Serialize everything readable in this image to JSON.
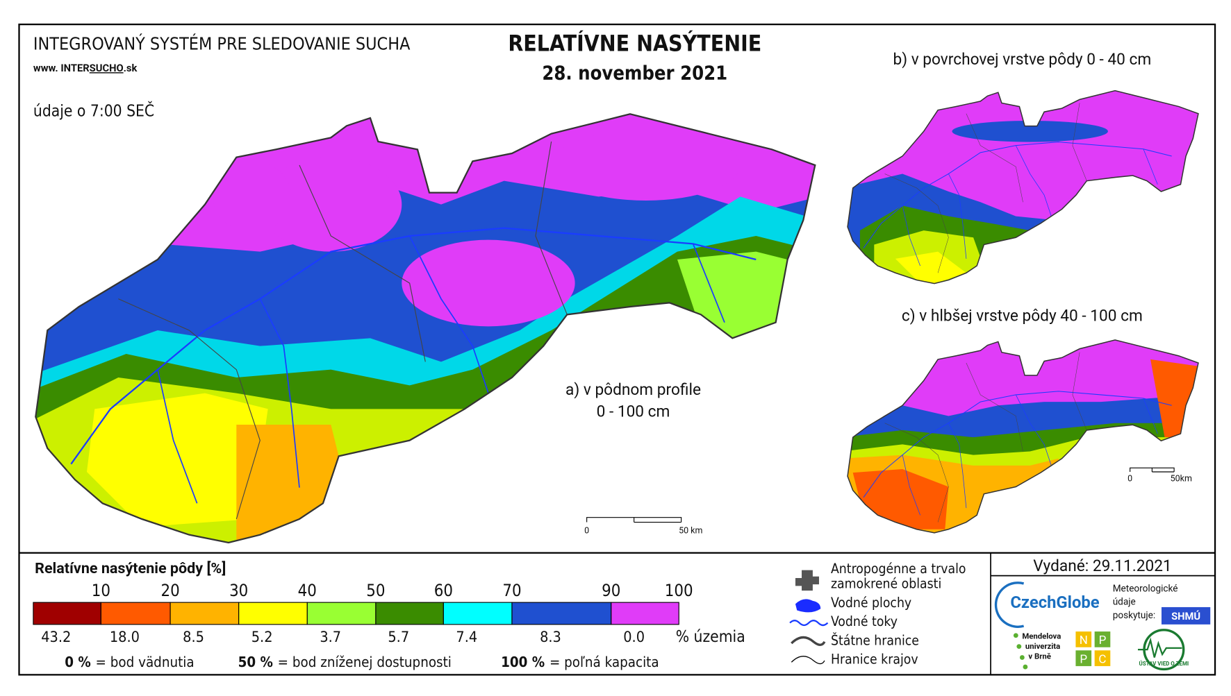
{
  "header": {
    "system": "INTEGROVANÝ SYSTÉM PRE SLEDOVANIE SUCHA",
    "web": [
      "www. INTER",
      "SUCHO",
      ".sk"
    ],
    "time_note": "údaje o 7:00 SEČ",
    "title": "RELATÍVNE NASÝTENIE",
    "date": "28. november 2021"
  },
  "maps": [
    {
      "label": [
        "a) v pôdnom profile",
        "0 - 100 cm"
      ],
      "scale": [
        "0",
        "50 km"
      ]
    },
    {
      "label": [
        "b) v povrchovej vrstve pôdy 0 - 40 cm"
      ]
    },
    {
      "label": [
        "c) v hlbšej vrstve pôdy 40 - 100 cm"
      ],
      "scale": [
        "0",
        "50km"
      ]
    }
  ],
  "legend": {
    "title": "Relatívne nasýtenie pôdy [%]",
    "classes": [
      {
        "upper": 10,
        "color": "#a00000",
        "share": "43.2"
      },
      {
        "upper": 20,
        "color": "#ff5a00",
        "share": "18.0"
      },
      {
        "upper": 30,
        "color": "#ffb300",
        "share": "8.5"
      },
      {
        "upper": 40,
        "color": "#ffff00",
        "share": "5.2"
      },
      {
        "upper": 50,
        "color": "#99ff33",
        "share": "3.7"
      },
      {
        "upper": 60,
        "color": "#3a8c00",
        "share": "5.7"
      },
      {
        "upper": 70,
        "color": "#00ffff",
        "share": "7.4"
      },
      {
        "upper": 90,
        "color": "#1f50d0",
        "share": "8.3"
      },
      {
        "upper": 100,
        "color": "#e03cf8",
        "share": "0.0"
      }
    ],
    "share_unit": "% územia",
    "notes": [
      [
        "0 %",
        "= bod vädnutia"
      ],
      [
        "50 %",
        "= bod zníženej dostupnosti"
      ],
      [
        "100 %",
        "= poľná kapacita"
      ]
    ]
  },
  "symbols": [
    [
      "Antropogénne a trvalo",
      "zamokrené oblasti"
    ],
    [
      "Vodné plochy"
    ],
    [
      "Vodné toky"
    ],
    [
      "Štátne hranice"
    ],
    [
      "Hranice krajov"
    ]
  ],
  "issued": "Vydané: 29.11.2021",
  "logos": {
    "czechglobe": "CzechGlobe",
    "meteo": [
      "Meteorologické",
      "údaje",
      "poskytuje:"
    ],
    "shmu": "SHMÚ",
    "mendel": [
      "Mendelova",
      "univerzita",
      "v Brně"
    ],
    "nppc": [
      "N",
      "P",
      "P",
      "C"
    ],
    "uvz": "ÚSTAV VIED O ZEMI"
  }
}
